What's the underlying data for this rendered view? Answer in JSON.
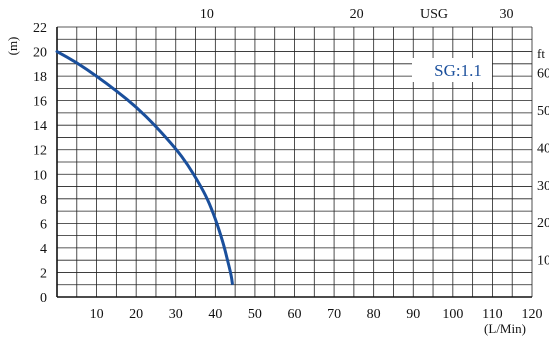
{
  "chart_data": {
    "type": "line",
    "title": "",
    "xlabel": "(L/Min)",
    "ylabel": "(m)",
    "x_range": [
      0,
      120
    ],
    "y_range": [
      0,
      22
    ],
    "x_ticks": [
      "10",
      "20",
      "30",
      "40",
      "50",
      "60",
      "70",
      "80",
      "90",
      "100",
      "110",
      "120"
    ],
    "y_ticks": [
      "0",
      "2",
      "4",
      "6",
      "8",
      "10",
      "12",
      "14",
      "16",
      "18",
      "20",
      "22"
    ],
    "top_axis": {
      "unit": "USG",
      "ticks": [
        "10",
        "20",
        "30"
      ]
    },
    "right_axis": {
      "unit": "ft",
      "ticks": [
        "60",
        "50",
        "40",
        "30",
        "20",
        "10"
      ]
    },
    "grid": true,
    "annotation": "SG:1.1",
    "series": [
      {
        "color": "#1a4f9c",
        "x": [
          0,
          5,
          10,
          15,
          20,
          25,
          30,
          33,
          36,
          38,
          40,
          42,
          43,
          44,
          44.3
        ],
        "y": [
          20,
          19.1,
          18,
          16.8,
          15.5,
          13.9,
          12.1,
          10.8,
          9.2,
          8.0,
          6.4,
          4.4,
          3.1,
          1.8,
          1.1
        ]
      }
    ]
  }
}
